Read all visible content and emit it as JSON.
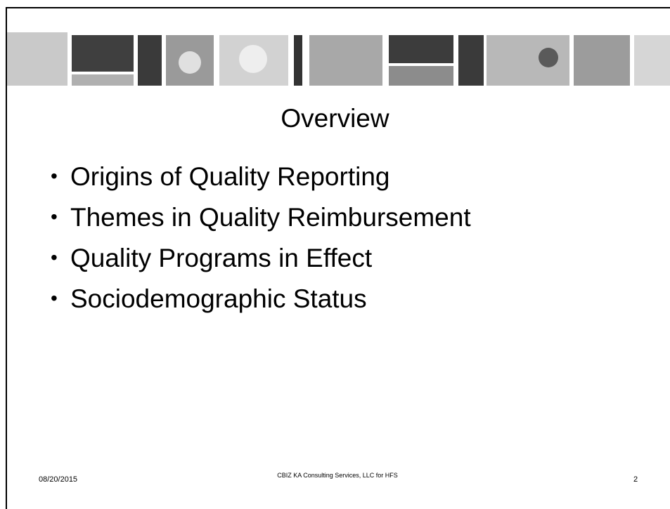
{
  "slide": {
    "title": "Overview",
    "bullets": [
      "Origins of Quality Reporting",
      "Themes in Quality Reimbursement",
      "Quality Programs in Effect",
      "Sociodemographic Status"
    ],
    "footer": {
      "date": "08/20/2015",
      "center": "CBIZ KA Consulting Services, LLC for HFS",
      "page": "2"
    }
  }
}
